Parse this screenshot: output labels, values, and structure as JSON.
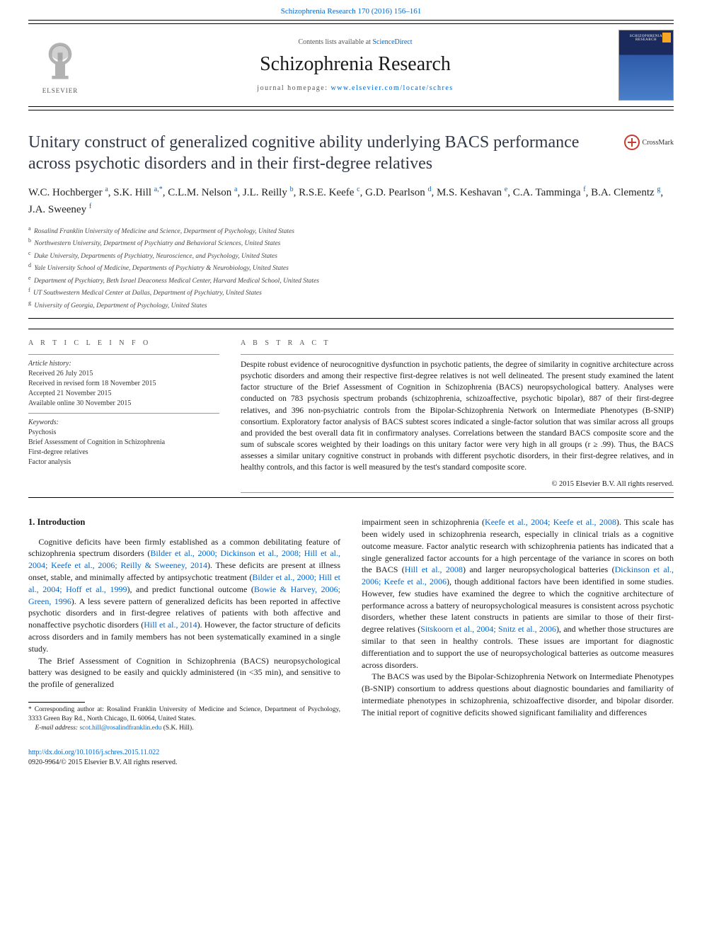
{
  "top_link": {
    "journal": "Schizophrenia Research",
    "cite": "170 (2016) 156–161"
  },
  "header": {
    "contents_prefix": "Contents lists available at ",
    "contents_link": "ScienceDirect",
    "journal_name": "Schizophrenia Research",
    "homepage_prefix": "journal homepage: ",
    "homepage_url": "www.elsevier.com/locate/schres",
    "publisher": "ELSEVIER",
    "cover_label": "SCHIZOPHRENIA RESEARCH"
  },
  "crossmark_label": "CrossMark",
  "article": {
    "title": "Unitary construct of generalized cognitive ability underlying BACS performance across psychotic disorders and in their first-degree relatives",
    "authors_html": "W.C. Hochberger <sup>a</sup>, S.K. Hill <sup>a,*</sup>, C.L.M. Nelson <sup>a</sup>, J.L. Reilly <sup>b</sup>, R.S.E. Keefe <sup>c</sup>, G.D. Pearlson <sup>d</sup>, M.S. Keshavan <sup>e</sup>, C.A. Tamminga <sup>f</sup>, B.A. Clementz <sup>g</sup>, J.A. Sweeney <sup>f</sup>",
    "affiliations": [
      "Rosalind Franklin University of Medicine and Science, Department of Psychology, United States",
      "Northwestern University, Department of Psychiatry and Behavioral Sciences, United States",
      "Duke University, Departments of Psychiatry, Neuroscience, and Psychology, United States",
      "Yale University School of Medicine, Departments of Psychiatry & Neurobiology, United States",
      "Department of Psychiatry, Beth Israel Deaconess Medical Center, Harvard Medical School, United States",
      "UT Southwestern Medical Center at Dallas, Department of Psychiatry, United States",
      "University of Georgia, Department of Psychology, United States"
    ],
    "aff_markers": [
      "a",
      "b",
      "c",
      "d",
      "e",
      "f",
      "g"
    ]
  },
  "meta": {
    "info_label": "A R T I C L E   I N F O",
    "abstract_label": "A B S T R A C T",
    "history_label": "Article history:",
    "history": [
      "Received 26 July 2015",
      "Received in revised form 18 November 2015",
      "Accepted 21 November 2015",
      "Available online 30 November 2015"
    ],
    "keywords_label": "Keywords:",
    "keywords": [
      "Psychosis",
      "Brief Assessment of Cognition in Schizophrenia",
      "First-degree relatives",
      "Factor analysis"
    ]
  },
  "abstract_text": "Despite robust evidence of neurocognitive dysfunction in psychotic patients, the degree of similarity in cognitive architecture across psychotic disorders and among their respective first-degree relatives is not well delineated. The present study examined the latent factor structure of the Brief Assessment of Cognition in Schizophrenia (BACS) neuropsychological battery. Analyses were conducted on 783 psychosis spectrum probands (schizophrenia, schizoaffective, psychotic bipolar), 887 of their first-degree relatives, and 396 non-psychiatric controls from the Bipolar-Schizophrenia Network on Intermediate Phenotypes (B-SNIP) consortium. Exploratory factor analysis of BACS subtest scores indicated a single-factor solution that was similar across all groups and provided the best overall data fit in confirmatory analyses. Correlations between the standard BACS composite score and the sum of subscale scores weighted by their loadings on this unitary factor were very high in all groups (r ≥ .99). Thus, the BACS assesses a similar unitary cognitive construct in probands with different psychotic disorders, in their first-degree relatives, and in healthy controls, and this factor is well measured by the test's standard composite score.",
  "copyright": "© 2015 Elsevier B.V. All rights reserved.",
  "intro": {
    "heading": "1. Introduction",
    "p1_a": "Cognitive deficits have been firmly established as a common debilitating feature of schizophrenia spectrum disorders (",
    "p1_cite1": "Bilder et al., 2000; Dickinson et al., 2008; Hill et al., 2004; Keefe et al., 2006; Reilly & Sweeney, 2014",
    "p1_b": "). These deficits are present at illness onset, stable, and minimally affected by antipsychotic treatment (",
    "p1_cite2": "Bilder et al., 2000; Hill et al., 2004; Hoff et al., 1999",
    "p1_c": "), and predict functional outcome (",
    "p1_cite3": "Bowie & Harvey, 2006; Green, 1996",
    "p1_d": "). A less severe pattern of generalized deficits has been reported in affective psychotic disorders and in first-degree relatives of patients with both affective and nonaffective psychotic disorders (",
    "p1_cite4": "Hill et al., 2014",
    "p1_e": "). However, the factor structure of deficits across disorders and in family members has not been systematically examined in a single study.",
    "p2": "The Brief Assessment of Cognition in Schizophrenia (BACS) neuropsychological battery was designed to be easily and quickly administered (in <35 min), and sensitive to the profile of generalized",
    "p3_a": "impairment seen in schizophrenia (",
    "p3_cite1": "Keefe et al., 2004; Keefe et al., 2008",
    "p3_b": "). This scale has been widely used in schizophrenia research, especially in clinical trials as a cognitive outcome measure. Factor analytic research with schizophrenia patients has indicated that a single generalized factor accounts for a high percentage of the variance in scores on both the BACS (",
    "p3_cite2": "Hill et al., 2008",
    "p3_c": ") and larger neuropsychological batteries (",
    "p3_cite3": "Dickinson et al., 2006; Keefe et al., 2006",
    "p3_d": "), though additional factors have been identified in some studies. However, few studies have examined the degree to which the cognitive architecture of performance across a battery of neuropsychological measures is consistent across psychotic disorders, whether these latent constructs in patients are similar to those of their first-degree relatives (",
    "p3_cite4": "Sitskoorn et al., 2004; Snitz et al., 2006",
    "p3_e": "), and whether those structures are similar to that seen in healthy controls. These issues are important for diagnostic differentiation and to support the use of neuropsychological batteries as outcome measures across disorders.",
    "p4": "The BACS was used by the Bipolar-Schizophrenia Network on Intermediate Phenotypes (B-SNIP) consortium to address questions about diagnostic boundaries and familiarity of intermediate phenotypes in schizophrenia, schizoaffective disorder, and bipolar disorder. The initial report of cognitive deficits showed significant familiality and differences"
  },
  "footnote": {
    "corr_marker": "*",
    "corr_text": " Corresponding author at: Rosalind Franklin University of Medicine and Science, Department of Psychology, 3333 Green Bay Rd., North Chicago, IL 60064, United States.",
    "email_label": "E-mail address: ",
    "email": "scot.hill@rosalindfranklin.edu",
    "email_suffix": " (S.K. Hill)."
  },
  "footer": {
    "doi": "http://dx.doi.org/10.1016/j.schres.2015.11.022",
    "issn_line": "0920-9964/© 2015 Elsevier B.V. All rights reserved."
  },
  "colors": {
    "link": "#0066cc",
    "elsevier_orange": "#f5a623",
    "title_color": "#303848",
    "crossmark_red": "#c73a30"
  }
}
